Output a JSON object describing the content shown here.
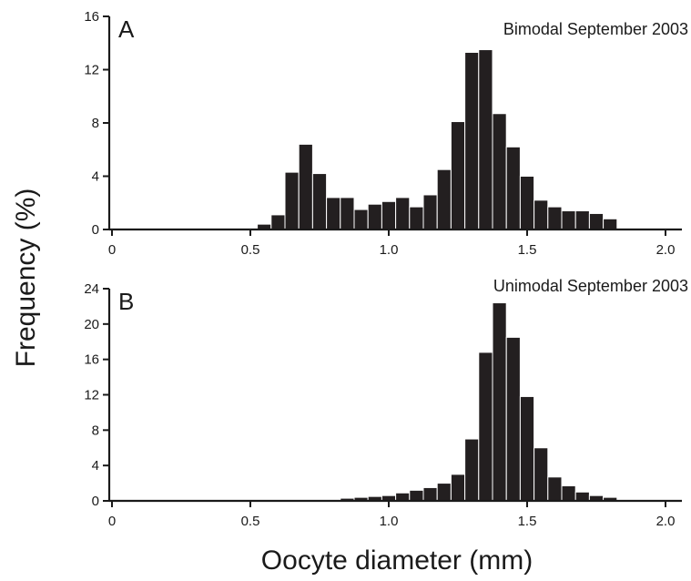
{
  "ylabel": "Frequency (%)",
  "xlabel": "Oocyte diameter (mm)",
  "chart_data": [
    {
      "type": "bar",
      "panel_label": "A",
      "title": "Bimodal September 2003",
      "bin_width": 0.05,
      "xlim": [
        0,
        2.0
      ],
      "ylim": [
        0,
        16
      ],
      "xticks": [
        0,
        0.5,
        1.0,
        1.5,
        2.0
      ],
      "xtick_labels": [
        "0",
        "0.5",
        "1.0",
        "1.5",
        "2.0"
      ],
      "yticks": [
        0,
        4,
        8,
        12,
        16
      ],
      "ytick_labels": [
        "0",
        "4",
        "8",
        "12",
        "16"
      ],
      "bins": [
        {
          "x": 0.55,
          "y": 0.4
        },
        {
          "x": 0.6,
          "y": 1.1
        },
        {
          "x": 0.65,
          "y": 4.3
        },
        {
          "x": 0.7,
          "y": 6.4
        },
        {
          "x": 0.75,
          "y": 4.2
        },
        {
          "x": 0.8,
          "y": 2.4
        },
        {
          "x": 0.85,
          "y": 2.4
        },
        {
          "x": 0.9,
          "y": 1.5
        },
        {
          "x": 0.95,
          "y": 1.9
        },
        {
          "x": 1.0,
          "y": 2.1
        },
        {
          "x": 1.05,
          "y": 2.4
        },
        {
          "x": 1.1,
          "y": 1.7
        },
        {
          "x": 1.15,
          "y": 2.6
        },
        {
          "x": 1.2,
          "y": 4.5
        },
        {
          "x": 1.25,
          "y": 8.1
        },
        {
          "x": 1.3,
          "y": 13.3
        },
        {
          "x": 1.35,
          "y": 13.5
        },
        {
          "x": 1.4,
          "y": 8.7
        },
        {
          "x": 1.45,
          "y": 6.2
        },
        {
          "x": 1.5,
          "y": 4.0
        },
        {
          "x": 1.55,
          "y": 2.2
        },
        {
          "x": 1.6,
          "y": 1.7
        },
        {
          "x": 1.65,
          "y": 1.4
        },
        {
          "x": 1.7,
          "y": 1.4
        },
        {
          "x": 1.75,
          "y": 1.2
        },
        {
          "x": 1.8,
          "y": 0.8
        }
      ]
    },
    {
      "type": "bar",
      "panel_label": "B",
      "title": "Unimodal September 2003",
      "bin_width": 0.05,
      "xlim": [
        0,
        2.0
      ],
      "ylim": [
        0,
        24
      ],
      "xticks": [
        0,
        0.5,
        1.0,
        1.5,
        2.0
      ],
      "xtick_labels": [
        "0",
        "0.5",
        "1.0",
        "1.5",
        "2.0"
      ],
      "yticks": [
        0,
        4,
        8,
        12,
        16,
        20,
        24
      ],
      "ytick_labels": [
        "0",
        "4",
        "8",
        "12",
        "16",
        "20",
        "24"
      ],
      "bins": [
        {
          "x": 0.85,
          "y": 0.3
        },
        {
          "x": 0.9,
          "y": 0.4
        },
        {
          "x": 0.95,
          "y": 0.5
        },
        {
          "x": 1.0,
          "y": 0.6
        },
        {
          "x": 1.05,
          "y": 0.9
        },
        {
          "x": 1.1,
          "y": 1.2
        },
        {
          "x": 1.15,
          "y": 1.5
        },
        {
          "x": 1.2,
          "y": 2.0
        },
        {
          "x": 1.25,
          "y": 3.0
        },
        {
          "x": 1.3,
          "y": 7.0
        },
        {
          "x": 1.35,
          "y": 16.8
        },
        {
          "x": 1.4,
          "y": 22.4
        },
        {
          "x": 1.45,
          "y": 18.5
        },
        {
          "x": 1.5,
          "y": 11.8
        },
        {
          "x": 1.55,
          "y": 6.0
        },
        {
          "x": 1.6,
          "y": 2.7
        },
        {
          "x": 1.65,
          "y": 1.7
        },
        {
          "x": 1.7,
          "y": 1.0
        },
        {
          "x": 1.75,
          "y": 0.6
        },
        {
          "x": 1.8,
          "y": 0.4
        }
      ]
    }
  ]
}
